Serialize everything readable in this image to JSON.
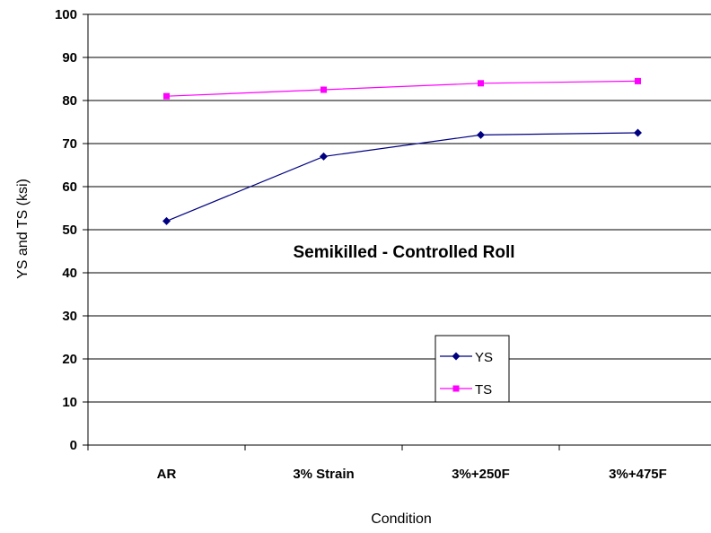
{
  "chart_data": {
    "type": "line",
    "categories": [
      "AR",
      "3% Strain",
      "3%+250F",
      "3%+475F"
    ],
    "series": [
      {
        "name": "YS",
        "values": [
          52,
          67,
          72,
          72.5
        ],
        "color": "#000080",
        "marker": "diamond"
      },
      {
        "name": "TS",
        "values": [
          81,
          82.5,
          84,
          84.5
        ],
        "color": "#ff00ff",
        "marker": "square"
      }
    ],
    "title": "",
    "annotation": "Semikilled - Controlled Roll",
    "xlabel": "Condition",
    "ylabel": "YS and TS (ksi)",
    "ylim": [
      0,
      100
    ],
    "yticks": [
      0,
      10,
      20,
      30,
      40,
      50,
      60,
      70,
      80,
      90,
      100
    ],
    "grid": "horizontal",
    "legend": "lower-center"
  }
}
